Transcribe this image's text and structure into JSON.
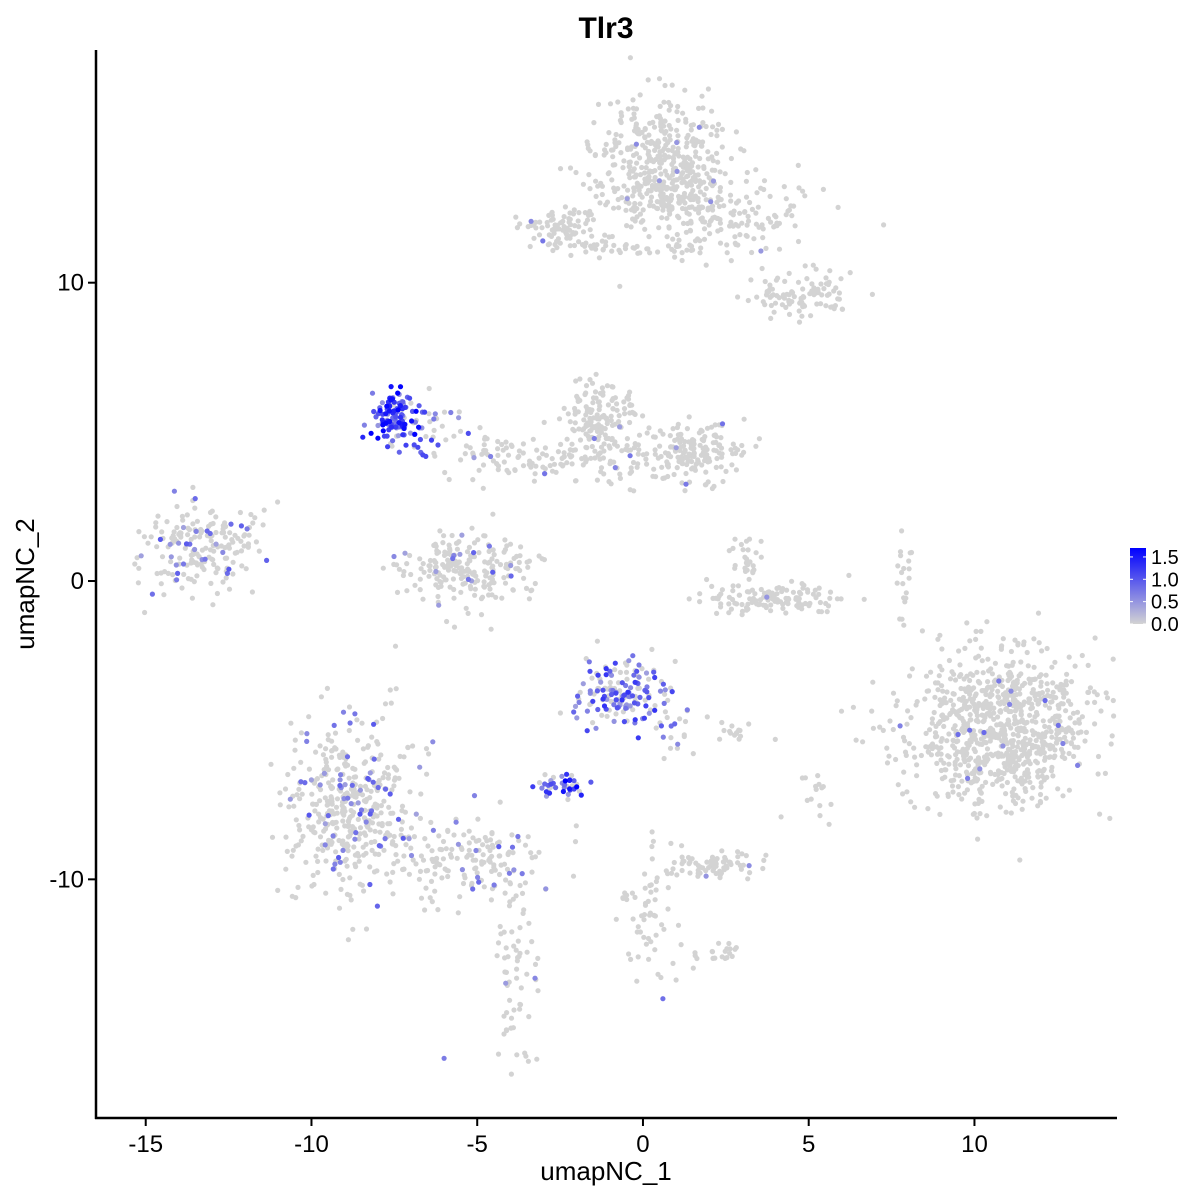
{
  "chart_data": {
    "type": "scatter",
    "title": "Tlr3",
    "xlabel": "umapNC_1",
    "ylabel": "umapNC_2",
    "xlim": [
      -16.5,
      14.3
    ],
    "ylim": [
      -18.0,
      17.8
    ],
    "x_ticks": [
      {
        "value": -15,
        "label": "-15"
      },
      {
        "value": -10,
        "label": "-10"
      },
      {
        "value": -5,
        "label": "-5"
      },
      {
        "value": 0,
        "label": "0"
      },
      {
        "value": 5,
        "label": "5"
      },
      {
        "value": 10,
        "label": "10"
      }
    ],
    "y_ticks": [
      {
        "value": -10,
        "label": "-10"
      },
      {
        "value": 0,
        "label": "0"
      },
      {
        "value": 10,
        "label": "10"
      }
    ],
    "grid": false,
    "legend": {
      "placement": "right",
      "type": "colorbar",
      "range": [
        0,
        1.7
      ],
      "ticks": [
        {
          "value": 0.0,
          "label": "0.0"
        },
        {
          "value": 0.5,
          "label": "0.5"
        },
        {
          "value": 1.0,
          "label": "1.0"
        },
        {
          "value": 1.5,
          "label": "1.5"
        }
      ]
    },
    "colors": {
      "low": "#d3d3d3",
      "high": "#0000ff"
    },
    "clusters": [
      {
        "cx": 0.5,
        "cy": 14.0,
        "sx": 1.0,
        "sy": 1.1,
        "n": 420,
        "expr_frac": 0.005,
        "expr_max": 0.6
      },
      {
        "cx": 2.2,
        "cy": 12.3,
        "sx": 1.3,
        "sy": 0.8,
        "n": 200,
        "expr_frac": 0.01,
        "expr_max": 0.6
      },
      {
        "cx": 5.3,
        "cy": 9.8,
        "sx": 0.6,
        "sy": 0.4,
        "n": 60,
        "expr_frac": 0.0,
        "expr_max": 0.0
      },
      {
        "cx": -2.6,
        "cy": 11.8,
        "sx": 0.6,
        "sy": 0.35,
        "n": 80,
        "expr_frac": 0.02,
        "expr_max": 0.9
      },
      {
        "cx": -0.6,
        "cy": 11.2,
        "sx": 1.0,
        "sy": 0.2,
        "n": 40,
        "expr_frac": 0.0,
        "expr_max": 0.0
      },
      {
        "cx": 4.0,
        "cy": 9.5,
        "sx": 0.4,
        "sy": 0.3,
        "n": 40,
        "expr_frac": 0.0,
        "expr_max": 0.0
      },
      {
        "cx": -7.5,
        "cy": 5.6,
        "sx": 0.35,
        "sy": 0.5,
        "n": 120,
        "expr_frac": 0.85,
        "expr_max": 1.7
      },
      {
        "cx": -6.3,
        "cy": 5.2,
        "sx": 0.7,
        "sy": 0.5,
        "n": 40,
        "expr_frac": 0.4,
        "expr_max": 1.2
      },
      {
        "cx": -1.3,
        "cy": 5.4,
        "sx": 0.6,
        "sy": 0.7,
        "n": 160,
        "expr_frac": 0.02,
        "expr_max": 0.8
      },
      {
        "cx": 1.3,
        "cy": 4.3,
        "sx": 0.9,
        "sy": 0.5,
        "n": 180,
        "expr_frac": 0.02,
        "expr_max": 0.8
      },
      {
        "cx": -2.0,
        "cy": 3.9,
        "sx": 1.2,
        "sy": 0.5,
        "n": 60,
        "expr_frac": 0.03,
        "expr_max": 0.8
      },
      {
        "cx": -4.2,
        "cy": 4.2,
        "sx": 0.9,
        "sy": 0.35,
        "n": 50,
        "expr_frac": 0.05,
        "expr_max": 0.8
      },
      {
        "cx": -13.4,
        "cy": 1.1,
        "sx": 0.8,
        "sy": 0.7,
        "n": 180,
        "expr_frac": 0.18,
        "expr_max": 1.0
      },
      {
        "cx": -5.2,
        "cy": 0.4,
        "sx": 1.0,
        "sy": 0.6,
        "n": 220,
        "expr_frac": 0.06,
        "expr_max": 1.0
      },
      {
        "cx": 3.8,
        "cy": -0.6,
        "sx": 1.0,
        "sy": 0.25,
        "n": 120,
        "expr_frac": 0.01,
        "expr_max": 0.6
      },
      {
        "cx": 3.1,
        "cy": 0.6,
        "sx": 0.3,
        "sy": 0.5,
        "n": 30,
        "expr_frac": 0.05,
        "expr_max": 0.7
      },
      {
        "cx": 10.8,
        "cy": -5.0,
        "sx": 1.4,
        "sy": 1.3,
        "n": 900,
        "expr_frac": 0.02,
        "expr_max": 0.9
      },
      {
        "cx": -0.6,
        "cy": -3.7,
        "sx": 0.7,
        "sy": 0.6,
        "n": 160,
        "expr_frac": 0.55,
        "expr_max": 1.3
      },
      {
        "cx": 0.9,
        "cy": -4.9,
        "sx": 0.35,
        "sy": 0.5,
        "n": 20,
        "expr_frac": 0.4,
        "expr_max": 1.0
      },
      {
        "cx": -2.4,
        "cy": -6.9,
        "sx": 0.4,
        "sy": 0.2,
        "n": 40,
        "expr_frac": 0.6,
        "expr_max": 1.7
      },
      {
        "cx": -8.8,
        "cy": -7.6,
        "sx": 0.9,
        "sy": 1.5,
        "n": 450,
        "expr_frac": 0.12,
        "expr_max": 1.0
      },
      {
        "cx": -5.2,
        "cy": -9.4,
        "sx": 1.1,
        "sy": 0.7,
        "n": 160,
        "expr_frac": 0.12,
        "expr_max": 1.0
      },
      {
        "cx": 2.2,
        "cy": -9.5,
        "sx": 0.6,
        "sy": 0.25,
        "n": 70,
        "expr_frac": 0.05,
        "expr_max": 0.8
      },
      {
        "cx": 2.3,
        "cy": -12.5,
        "sx": 0.3,
        "sy": 0.2,
        "n": 20,
        "expr_frac": 0.0,
        "expr_max": 0.0
      },
      {
        "cx": 0.3,
        "cy": -11.0,
        "sx": 0.5,
        "sy": 1.2,
        "n": 60,
        "expr_frac": 0.0,
        "expr_max": 0.0
      },
      {
        "cx": -3.8,
        "cy": -13.5,
        "sx": 0.3,
        "sy": 1.5,
        "n": 60,
        "expr_frac": 0.05,
        "expr_max": 0.8
      },
      {
        "cx": 7.8,
        "cy": 0.0,
        "sx": 0.2,
        "sy": 0.8,
        "n": 20,
        "expr_frac": 0.0,
        "expr_max": 0.0
      },
      {
        "cx": 3.0,
        "cy": -5.0,
        "sx": 0.4,
        "sy": 0.2,
        "n": 15,
        "expr_frac": 0.0,
        "expr_max": 0.0
      },
      {
        "cx": -11.8,
        "cy": 1.8,
        "sx": 0.4,
        "sy": 0.6,
        "n": 15,
        "expr_frac": 0.0,
        "expr_max": 0.0
      },
      {
        "cx": 5.2,
        "cy": -7.3,
        "sx": 0.3,
        "sy": 0.5,
        "n": 15,
        "expr_frac": 0.0,
        "expr_max": 0.0
      }
    ],
    "highlight_points": [
      {
        "x": -7.4,
        "y": 6.3,
        "v": 1.7
      },
      {
        "x": -2.0,
        "y": -6.9,
        "v": 1.7
      },
      {
        "x": -6.0,
        "y": -16.0,
        "v": 0.7
      },
      {
        "x": 0.6,
        "y": -14.0,
        "v": 0.8
      }
    ]
  }
}
